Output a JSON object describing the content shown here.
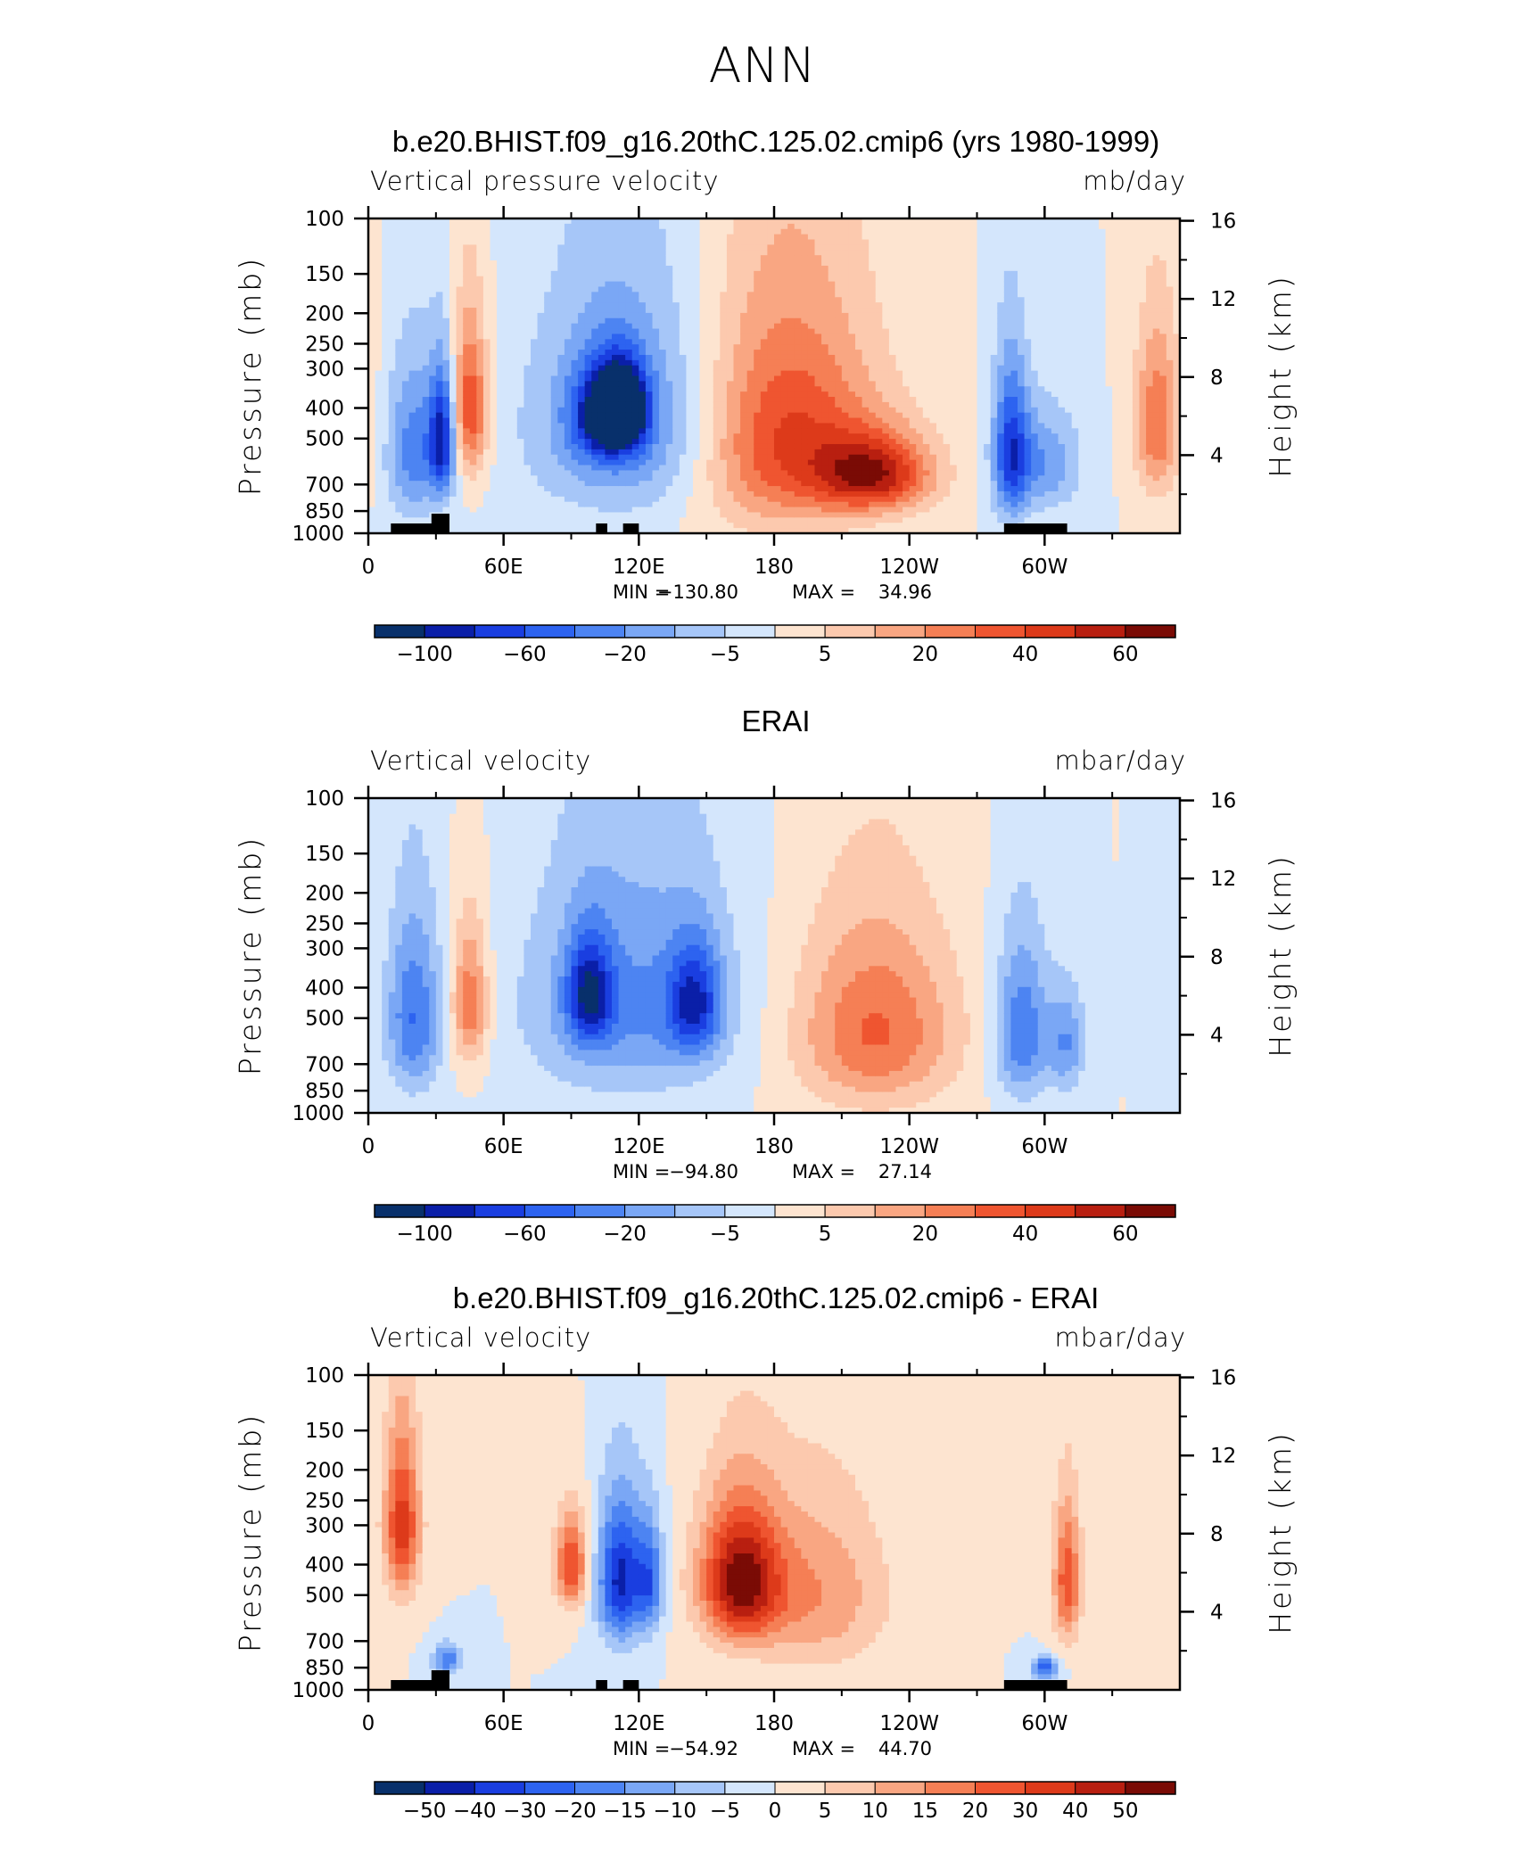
{
  "figure": {
    "title": "ANN"
  },
  "colors": {
    "scale": [
      "#08306b",
      "#0a1fa8",
      "#1a3ee0",
      "#2d63f0",
      "#4d84f2",
      "#7aa7f5",
      "#a6c6f8",
      "#d4e6fc",
      "#fde4d0",
      "#fcc9ae",
      "#f9a682",
      "#f57f55",
      "#ef5530",
      "#dd3a1a",
      "#b81f10",
      "#7a0b05"
    ],
    "land": "#000000"
  },
  "chart_data": [
    {
      "type": "heatmap",
      "title": "b.e20.BHIST.f09_g16.20thC.125.02.cmip6 (yrs 1980-1999)",
      "variable": "Vertical pressure velocity",
      "units": "mb/day",
      "ylabel": "Pressure (mb)",
      "ylabel_right": "Height (km)",
      "x_ticks": [
        "0",
        "60E",
        "120E",
        "180",
        "120W",
        "60W"
      ],
      "y_ticks": [
        "100",
        "150",
        "200",
        "250",
        "300",
        "400",
        "500",
        "700",
        "850",
        "1000"
      ],
      "y_right_ticks": [
        "16",
        "12",
        "8",
        "4"
      ],
      "min_label": "MIN =",
      "min": "−130.80",
      "max_label": "MAX =",
      "max": "34.96",
      "colorbar_labels": [
        "−100",
        "−60",
        "−20",
        "−5",
        "5",
        "20",
        "40",
        "60"
      ],
      "colorbar_label_slots": [
        1,
        3,
        5,
        7,
        9,
        11,
        13,
        15
      ],
      "features": [
        {
          "lon": 20,
          "p": 550,
          "wlon": 12,
          "wp": 700,
          "level": 0.28
        },
        {
          "lon": 33,
          "p": 500,
          "wlon": 6,
          "wp": 500,
          "level": 0.12
        },
        {
          "lon": 45,
          "p": 400,
          "wlon": 8,
          "wp": 500,
          "level": 0.82
        },
        {
          "lon": 115,
          "p": 450,
          "wlon": 42,
          "wp": 800,
          "level": 0.27
        },
        {
          "lon": 105,
          "p": 420,
          "wlon": 14,
          "wp": 300,
          "level": 0.15
        },
        {
          "lon": 113,
          "p": 400,
          "wlon": 10,
          "wp": 250,
          "level": 0.08
        },
        {
          "lon": 185,
          "p": 500,
          "wlon": 40,
          "wp": 900,
          "level": 0.83
        },
        {
          "lon": 225,
          "p": 650,
          "wlon": 25,
          "wp": 400,
          "level": 0.87
        },
        {
          "lon": 285,
          "p": 550,
          "wlon": 8,
          "wp": 700,
          "level": 0.18
        },
        {
          "lon": 300,
          "p": 600,
          "wlon": 16,
          "wp": 500,
          "level": 0.32
        },
        {
          "lon": 350,
          "p": 450,
          "wlon": 10,
          "wp": 600,
          "level": 0.75
        }
      ],
      "land_blocks": [
        [
          10,
          34
        ],
        [
          28,
          36
        ],
        [
          101,
          106
        ],
        [
          113,
          120
        ],
        [
          282,
          310
        ]
      ]
    },
    {
      "type": "heatmap",
      "title": "ERAI",
      "variable": "Vertical velocity",
      "units": "mbar/day",
      "ylabel": "Pressure (mb)",
      "ylabel_right": "Height (km)",
      "x_ticks": [
        "0",
        "60E",
        "120E",
        "180",
        "120W",
        "60W"
      ],
      "y_ticks": [
        "100",
        "150",
        "200",
        "250",
        "300",
        "400",
        "500",
        "700",
        "850",
        "1000"
      ],
      "y_right_ticks": [
        "16",
        "12",
        "8",
        "4"
      ],
      "min_label": "MIN =",
      "min": "−94.80",
      "max_label": "MAX =",
      "max": "27.14",
      "colorbar_labels": [
        "−100",
        "−60",
        "−20",
        "−5",
        "5",
        "20",
        "40",
        "60"
      ],
      "colorbar_label_slots": [
        1,
        3,
        5,
        7,
        9,
        11,
        13,
        15
      ],
      "features": [
        {
          "lon": 20,
          "p": 500,
          "wlon": 12,
          "wp": 700,
          "level": 0.25
        },
        {
          "lon": 45,
          "p": 450,
          "wlon": 8,
          "wp": 500,
          "level": 0.75
        },
        {
          "lon": 115,
          "p": 450,
          "wlon": 45,
          "wp": 850,
          "level": 0.3
        },
        {
          "lon": 98,
          "p": 420,
          "wlon": 10,
          "wp": 350,
          "level": 0.18
        },
        {
          "lon": 145,
          "p": 450,
          "wlon": 12,
          "wp": 400,
          "level": 0.2
        },
        {
          "lon": 225,
          "p": 550,
          "wlon": 35,
          "wp": 800,
          "level": 0.76
        },
        {
          "lon": 290,
          "p": 550,
          "wlon": 12,
          "wp": 700,
          "level": 0.25
        },
        {
          "lon": 310,
          "p": 600,
          "wlon": 8,
          "wp": 500,
          "level": 0.32
        }
      ],
      "land_blocks": []
    },
    {
      "type": "heatmap",
      "title": "b.e20.BHIST.f09_g16.20thC.125.02.cmip6 - ERAI",
      "variable": "Vertical velocity",
      "units": "mbar/day",
      "ylabel": "Pressure (mb)",
      "ylabel_right": "Height (km)",
      "x_ticks": [
        "0",
        "60E",
        "120E",
        "180",
        "120W",
        "60W"
      ],
      "y_ticks": [
        "100",
        "150",
        "200",
        "250",
        "300",
        "400",
        "500",
        "700",
        "850",
        "1000"
      ],
      "y_right_ticks": [
        "16",
        "12",
        "8",
        "4"
      ],
      "min_label": "MIN =",
      "min": "−54.92",
      "max_label": "MAX =",
      "max": "44.70",
      "colorbar_labels": [
        "−50",
        "−40",
        "−30",
        "−20",
        "−15",
        "−10",
        "−5",
        "0",
        "5",
        "10",
        "15",
        "20",
        "30",
        "40",
        "50"
      ],
      "colorbar_label_slots": [
        1,
        2,
        3,
        4,
        5,
        6,
        7,
        8,
        9,
        10,
        11,
        12,
        13,
        14,
        15
      ],
      "features": [
        {
          "lon": 15,
          "p": 300,
          "wlon": 8,
          "wp": 400,
          "level": 0.85
        },
        {
          "lon": 35,
          "p": 800,
          "wlon": 6,
          "wp": 200,
          "level": 0.25
        },
        {
          "lon": 90,
          "p": 400,
          "wlon": 7,
          "wp": 300,
          "level": 0.82
        },
        {
          "lon": 112,
          "p": 450,
          "wlon": 10,
          "wp": 500,
          "level": 0.1
        },
        {
          "lon": 125,
          "p": 450,
          "wlon": 6,
          "wp": 400,
          "level": 0.25
        },
        {
          "lon": 165,
          "p": 450,
          "wlon": 18,
          "wp": 500,
          "level": 0.96
        },
        {
          "lon": 200,
          "p": 500,
          "wlon": 30,
          "wp": 700,
          "level": 0.68
        },
        {
          "lon": 310,
          "p": 450,
          "wlon": 6,
          "wp": 500,
          "level": 0.8
        },
        {
          "lon": 300,
          "p": 850,
          "wlon": 6,
          "wp": 150,
          "level": 0.2
        }
      ],
      "land_blocks": [
        [
          10,
          34
        ],
        [
          28,
          36
        ],
        [
          101,
          106
        ],
        [
          113,
          120
        ],
        [
          282,
          310
        ]
      ]
    }
  ]
}
